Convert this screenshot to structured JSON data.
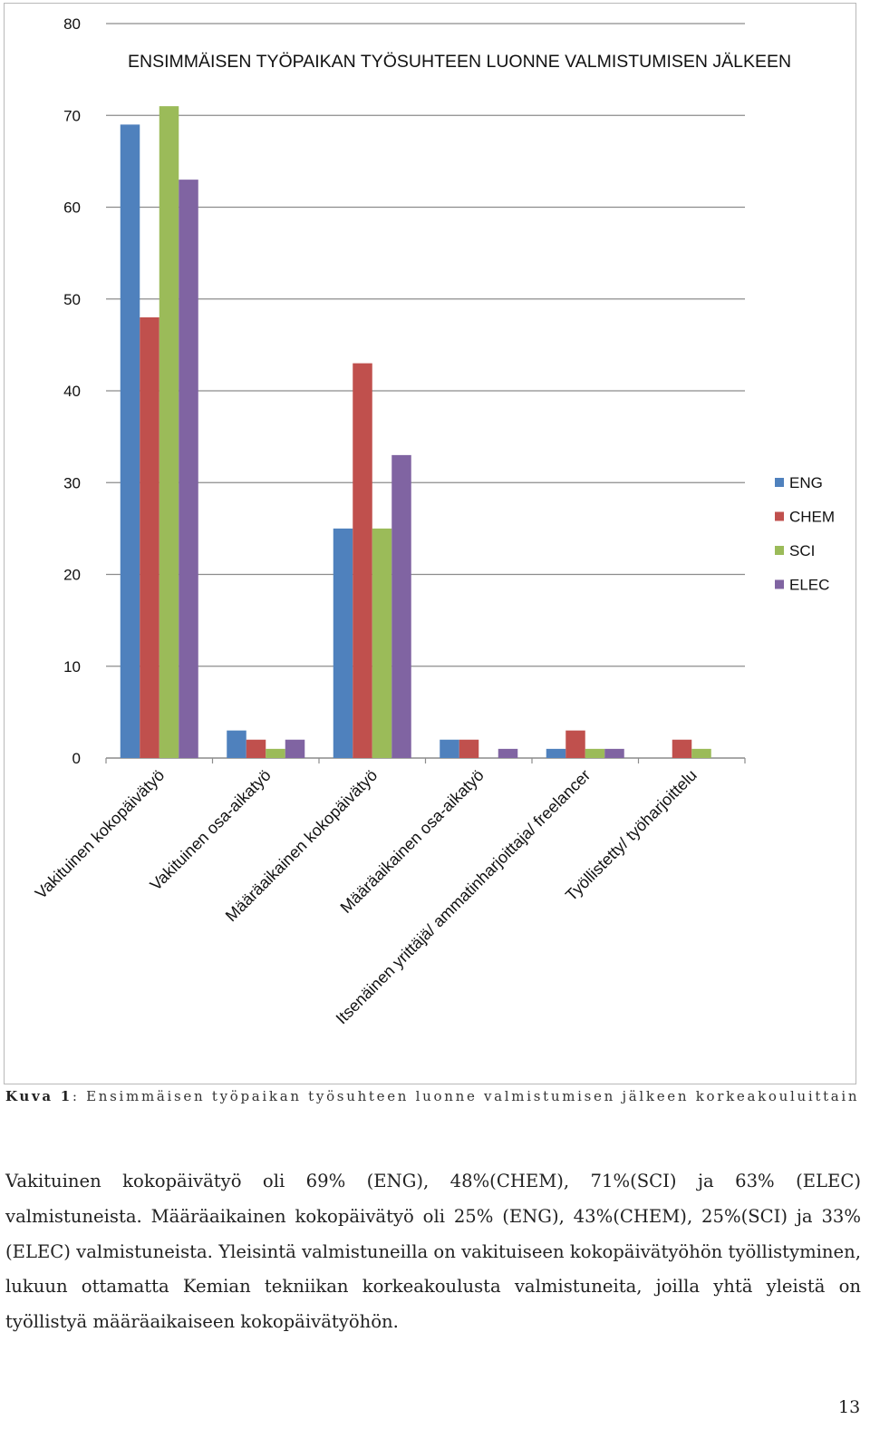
{
  "chart_data": {
    "type": "bar",
    "title": "ENSIMMÄISEN TYÖPAIKAN TYÖSUHTEEN LUONNE VALMISTUMISEN JÄLKEEN",
    "categories": [
      "Vakituinen kokopäivätyö",
      "Vakituinen osa-aikatyö",
      "Määräaikainen kokopäivätyö",
      "Määräaikainen osa-aikatyö",
      "Itsenäinen yrittäjä/ ammatinharjoittaja/ freelancer",
      "Työllistetty/ työharjoittelu"
    ],
    "series": [
      {
        "name": "ENG",
        "color": "#4f81bd",
        "values": [
          69,
          3,
          25,
          2,
          1,
          0
        ]
      },
      {
        "name": "CHEM",
        "color": "#c0504d",
        "values": [
          48,
          2,
          43,
          2,
          3,
          2
        ]
      },
      {
        "name": "SCI",
        "color": "#9bbb59",
        "values": [
          71,
          1,
          25,
          0,
          1,
          1
        ]
      },
      {
        "name": "ELEC",
        "color": "#8064a2",
        "values": [
          63,
          2,
          33,
          1,
          1,
          0
        ]
      }
    ],
    "y_ticks": [
      0,
      10,
      20,
      30,
      40,
      50,
      60,
      70,
      80
    ],
    "ylim": [
      0,
      80
    ],
    "xlabel": "",
    "ylabel": "",
    "grid": true,
    "legend": "right"
  },
  "caption": {
    "label": "Kuva 1",
    "text": ": Ensimmäisen työpaikan työsuhteen luonne valmistumisen jälkeen korkeakouluittain"
  },
  "paragraph": "Vakituinen kokopäivätyö oli 69% (ENG), 48%(CHEM), 71%(SCI) ja 63% (ELEC) valmistuneista. Määräaikainen kokopäivätyö oli 25% (ENG), 43%(CHEM), 25%(SCI) ja 33%(ELEC) valmistuneista. Yleisintä valmistuneilla on vakituiseen kokopäivätyöhön työllistyminen, lukuun ottamatta Kemian tekniikan korkeakoulusta valmistuneita, joilla yhtä yleistä on työllistyä määräaikaiseen kokopäivätyöhön.",
  "page_number": "13"
}
